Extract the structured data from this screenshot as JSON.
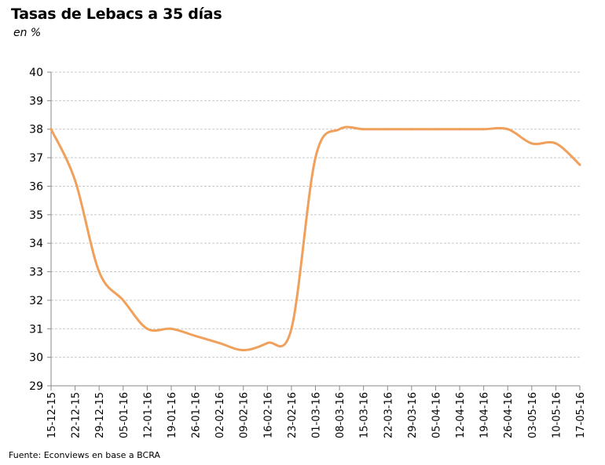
{
  "header": {
    "title": "Tasas de Lebacs a 35 días",
    "subtitle": "en %"
  },
  "footer": {
    "source": "Fuente: Econviews en base a BCRA"
  },
  "colors": {
    "line": "#F0A05A",
    "grid": "#C8C8C8",
    "axis": "#8A8A8A"
  },
  "chart_data": {
    "type": "line",
    "title": "Tasas de Lebacs a 35 días",
    "subtitle": "en %",
    "xlabel": "",
    "ylabel": "",
    "ylim": [
      29,
      40
    ],
    "yticks": [
      29,
      30,
      31,
      32,
      33,
      34,
      35,
      36,
      37,
      38,
      39,
      40
    ],
    "grid": true,
    "categories": [
      "15-12-15",
      "22-12-15",
      "29-12-15",
      "05-01-16",
      "12-01-16",
      "19-01-16",
      "26-01-16",
      "02-02-16",
      "09-02-16",
      "16-02-16",
      "23-02-16",
      "01-03-16",
      "08-03-16",
      "15-03-16",
      "22-03-16",
      "29-03-16",
      "05-04-16",
      "12-04-16",
      "19-04-16",
      "26-04-16",
      "03-05-16",
      "10-05-16",
      "17-05-16"
    ],
    "series": [
      {
        "values": [
          38.0,
          36.2,
          33.0,
          32.0,
          31.0,
          31.0,
          30.75,
          30.5,
          30.25,
          30.5,
          31.0,
          37.0,
          38.0,
          38.0,
          38.0,
          38.0,
          38.0,
          38.0,
          38.0,
          38.0,
          37.5,
          37.5,
          36.75
        ]
      }
    ]
  }
}
